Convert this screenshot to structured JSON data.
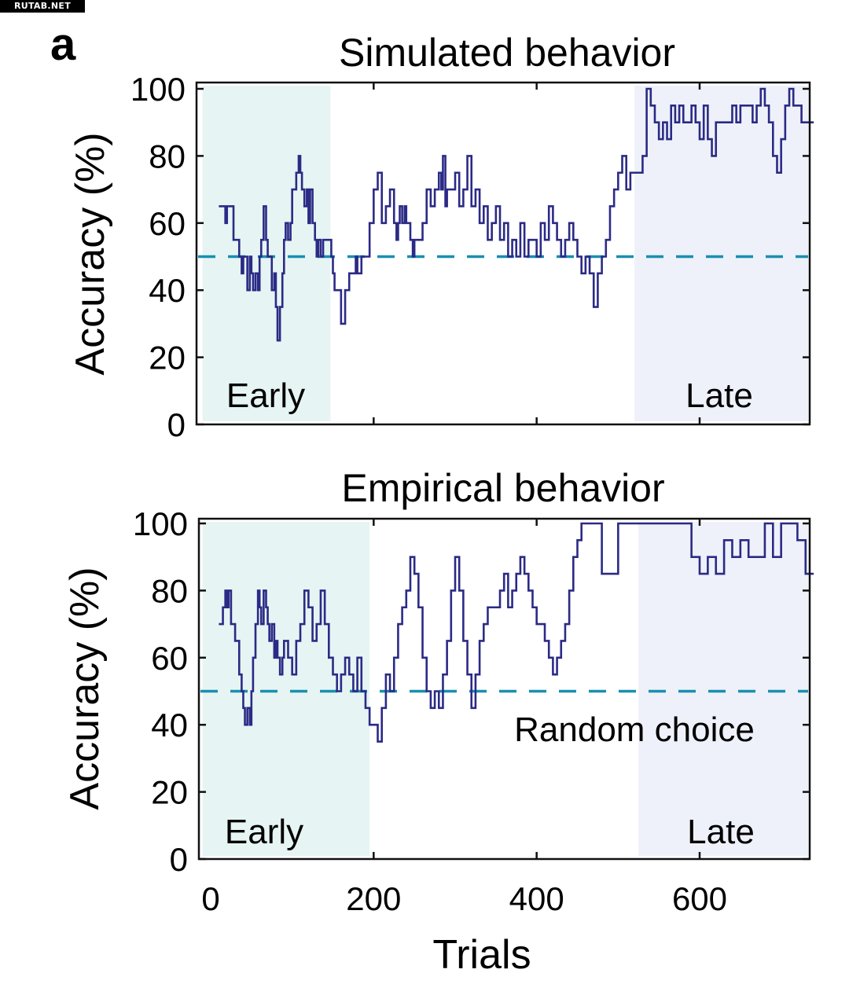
{
  "watermark": "RUTAB.NET",
  "panel_letter": "a",
  "chart_data": [
    {
      "type": "line",
      "title": "Simulated behavior",
      "xlabel": "Trials",
      "ylabel": "Accuracy (%)",
      "xlim": [
        -15,
        740
      ],
      "ylim": [
        0,
        100
      ],
      "xticks": [
        0,
        200,
        400,
        600
      ],
      "yticks": [
        0,
        20,
        40,
        60,
        80,
        100
      ],
      "ytick_labels": [
        "0",
        "20",
        "40",
        "60",
        "80",
        "100"
      ],
      "xtick_labels_shown": false,
      "grid": false,
      "reference_line": {
        "y": 50,
        "style": "dashed",
        "label": "",
        "color": "#1a8fb0"
      },
      "regions": [
        {
          "label": "Early",
          "x_start": -10,
          "x_end": 147,
          "color": "#e6f5f3"
        },
        {
          "label": "Late",
          "x_start": 520,
          "x_end": 740,
          "color": "#eef1f9"
        }
      ],
      "series": [
        {
          "name": "accuracy",
          "color": "#2b2a86",
          "x": [
            10,
            15,
            18,
            20,
            25,
            28,
            30,
            35,
            38,
            40,
            45,
            48,
            50,
            52,
            55,
            58,
            60,
            62,
            65,
            68,
            70,
            75,
            78,
            80,
            82,
            85,
            88,
            90,
            92,
            95,
            98,
            100,
            105,
            108,
            110,
            112,
            115,
            118,
            120,
            122,
            125,
            128,
            130,
            132,
            135,
            138,
            140,
            145,
            148,
            150,
            152,
            155,
            160,
            165,
            170,
            175,
            178,
            180,
            185,
            190,
            195,
            200,
            205,
            210,
            215,
            220,
            225,
            228,
            230,
            232,
            235,
            238,
            240,
            245,
            248,
            250,
            255,
            260,
            265,
            270,
            275,
            280,
            283,
            285,
            288,
            290,
            295,
            300,
            305,
            310,
            315,
            320,
            325,
            330,
            335,
            340,
            345,
            350,
            355,
            360,
            365,
            370,
            375,
            380,
            385,
            390,
            395,
            400,
            405,
            410,
            415,
            420,
            425,
            430,
            435,
            440,
            445,
            450,
            455,
            460,
            465,
            470,
            475,
            480,
            485,
            490,
            495,
            500,
            505,
            510,
            515,
            520,
            525,
            530,
            535,
            540,
            545,
            550,
            555,
            560,
            565,
            570,
            575,
            580,
            585,
            590,
            595,
            600,
            605,
            610,
            615,
            620,
            625,
            630,
            635,
            640,
            645,
            650,
            655,
            660,
            665,
            670,
            675,
            680,
            685,
            690,
            695,
            700,
            705,
            710,
            715,
            720,
            725,
            730,
            735,
            740
          ],
          "y": [
            65,
            65,
            60,
            65,
            65,
            55,
            55,
            50,
            45,
            50,
            40,
            50,
            45,
            40,
            45,
            40,
            50,
            55,
            65,
            55,
            50,
            40,
            45,
            35,
            25,
            35,
            45,
            55,
            60,
            55,
            60,
            70,
            75,
            80,
            75,
            70,
            65,
            70,
            60,
            70,
            60,
            55,
            50,
            55,
            50,
            55,
            55,
            55,
            50,
            45,
            40,
            40,
            30,
            40,
            45,
            45,
            50,
            45,
            50,
            50,
            60,
            70,
            75,
            60,
            65,
            70,
            60,
            55,
            60,
            65,
            60,
            65,
            60,
            55,
            50,
            55,
            55,
            60,
            70,
            65,
            70,
            75,
            70,
            80,
            65,
            70,
            70,
            75,
            65,
            70,
            80,
            65,
            70,
            60,
            65,
            55,
            60,
            65,
            55,
            60,
            50,
            55,
            50,
            60,
            50,
            55,
            55,
            50,
            60,
            55,
            65,
            60,
            55,
            50,
            55,
            60,
            55,
            50,
            45,
            50,
            45,
            35,
            45,
            50,
            55,
            65,
            70,
            75,
            80,
            70,
            75,
            75,
            75,
            80,
            100,
            95,
            90,
            85,
            90,
            85,
            95,
            90,
            95,
            90,
            90,
            95,
            90,
            85,
            95,
            85,
            80,
            90,
            90,
            90,
            90,
            95,
            90,
            95,
            95,
            95,
            90,
            95,
            100,
            95,
            90,
            80,
            75,
            85,
            95,
            100,
            95,
            95,
            90,
            90,
            90,
            90
          ]
        }
      ]
    },
    {
      "type": "line",
      "title": "Empirical behavior",
      "xlabel": "Trials",
      "ylabel": "Accuracy (%)",
      "xlim": [
        -15,
        740
      ],
      "ylim": [
        0,
        100
      ],
      "xticks": [
        0,
        200,
        400,
        600
      ],
      "xtick_labels": [
        "0",
        "200",
        "400",
        "600"
      ],
      "yticks": [
        0,
        20,
        40,
        60,
        80,
        100
      ],
      "ytick_labels": [
        "0",
        "20",
        "40",
        "60",
        "80",
        "100"
      ],
      "grid": false,
      "reference_line": {
        "y": 50,
        "style": "dashed",
        "label": "Random choice",
        "color": "#1a8fb0"
      },
      "regions": [
        {
          "label": "Early",
          "x_start": -10,
          "x_end": 195,
          "color": "#e6f5f3"
        },
        {
          "label": "Late",
          "x_start": 525,
          "x_end": 740,
          "color": "#eef1f9"
        }
      ],
      "series": [
        {
          "name": "accuracy",
          "color": "#2b2a86",
          "x": [
            10,
            13,
            15,
            18,
            20,
            22,
            25,
            28,
            30,
            35,
            38,
            40,
            42,
            45,
            48,
            50,
            52,
            55,
            58,
            60,
            62,
            65,
            68,
            70,
            72,
            75,
            78,
            80,
            82,
            85,
            88,
            90,
            95,
            100,
            105,
            110,
            115,
            120,
            125,
            130,
            135,
            140,
            145,
            150,
            155,
            160,
            165,
            170,
            175,
            178,
            180,
            185,
            190,
            195,
            200,
            205,
            210,
            215,
            220,
            225,
            230,
            235,
            240,
            245,
            250,
            255,
            260,
            265,
            270,
            275,
            280,
            285,
            290,
            295,
            300,
            305,
            310,
            315,
            320,
            325,
            330,
            335,
            340,
            345,
            350,
            355,
            360,
            365,
            370,
            375,
            380,
            385,
            390,
            395,
            400,
            405,
            410,
            415,
            420,
            425,
            430,
            435,
            440,
            445,
            450,
            455,
            460,
            470,
            480,
            490,
            500,
            510,
            520,
            530,
            540,
            550,
            560,
            570,
            580,
            590,
            600,
            610,
            620,
            630,
            640,
            650,
            660,
            670,
            680,
            690,
            700,
            710,
            720,
            730,
            740
          ],
          "y": [
            70,
            70,
            75,
            80,
            75,
            80,
            70,
            70,
            65,
            55,
            50,
            45,
            40,
            45,
            40,
            50,
            60,
            70,
            80,
            75,
            70,
            80,
            75,
            70,
            65,
            70,
            60,
            65,
            60,
            55,
            60,
            65,
            60,
            55,
            65,
            70,
            80,
            75,
            65,
            70,
            80,
            70,
            60,
            55,
            50,
            55,
            60,
            55,
            50,
            50,
            60,
            50,
            45,
            40,
            40,
            35,
            45,
            55,
            50,
            60,
            70,
            75,
            80,
            90,
            85,
            75,
            60,
            50,
            45,
            50,
            45,
            55,
            65,
            80,
            90,
            80,
            65,
            55,
            45,
            55,
            65,
            70,
            75,
            75,
            75,
            80,
            85,
            75,
            80,
            85,
            90,
            85,
            80,
            75,
            70,
            70,
            65,
            60,
            55,
            60,
            65,
            70,
            80,
            90,
            95,
            100,
            100,
            100,
            85,
            85,
            100,
            100,
            100,
            100,
            100,
            100,
            100,
            100,
            100,
            90,
            85,
            90,
            85,
            95,
            90,
            95,
            90,
            90,
            100,
            90,
            100,
            100,
            95,
            85,
            85
          ]
        }
      ]
    }
  ]
}
